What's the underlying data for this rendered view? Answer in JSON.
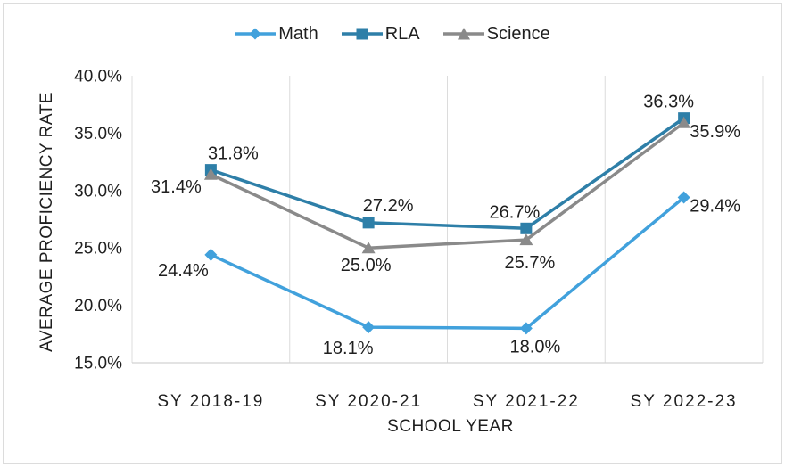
{
  "chart_data": {
    "type": "line",
    "title": "",
    "categories": [
      "SY 2018-19",
      "SY 2020-21",
      "SY 2021-22",
      "SY 2022-23"
    ],
    "series": [
      {
        "name": "Math",
        "marker": "diamond",
        "color": "#41A1DC",
        "values": [
          24.4,
          18.1,
          18.0,
          29.4
        ],
        "labels": [
          "24.4%",
          "18.1%",
          "18.0%",
          "29.4%"
        ],
        "label_offsets": [
          [
            -31,
            17
          ],
          [
            -23,
            23
          ],
          [
            10,
            20
          ],
          [
            35,
            9
          ]
        ]
      },
      {
        "name": "RLA",
        "marker": "square",
        "color": "#2E7FA8",
        "values": [
          31.8,
          27.2,
          26.7,
          36.3
        ],
        "labels": [
          "31.8%",
          "27.2%",
          "26.7%",
          "36.3%"
        ],
        "label_offsets": [
          [
            25,
            -19
          ],
          [
            22,
            -20
          ],
          [
            -13,
            -19
          ],
          [
            -17,
            -19
          ]
        ]
      },
      {
        "name": "Science",
        "marker": "triangle",
        "color": "#8A8A8A",
        "values": [
          31.4,
          25.0,
          25.7,
          35.9
        ],
        "labels": [
          "31.4%",
          "25.0%",
          "25.7%",
          "35.9%"
        ],
        "label_offsets": [
          [
            -39,
            13
          ],
          [
            -3,
            19
          ],
          [
            4,
            25
          ],
          [
            35,
            9
          ]
        ]
      }
    ],
    "xlabel": "SCHOOL YEAR",
    "ylabel": "AVERAGE PROFICIENCY RATE",
    "ylim": [
      15,
      40
    ],
    "ytick_step": 5,
    "ytick_labels": [
      "40.0%",
      "35.0%",
      "30.0%",
      "25.0%",
      "20.0%",
      "15.0%"
    ],
    "grid": "vertical-only",
    "legend_position": "top-center",
    "gridline_color": "#DCDCDC",
    "axis_line_color": "#D2D2D2",
    "text_color": "#1f1f1f"
  }
}
